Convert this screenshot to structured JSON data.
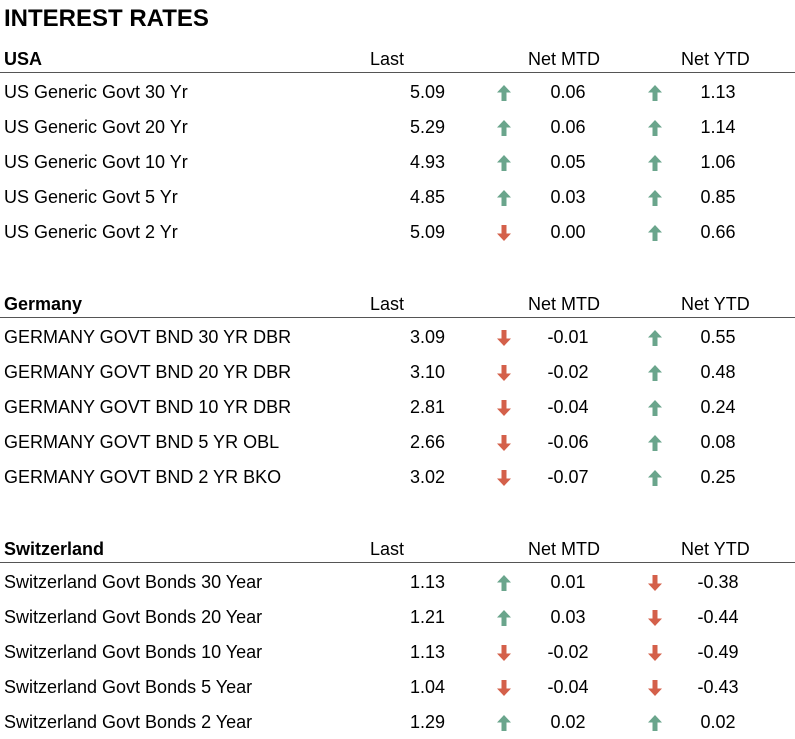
{
  "title": "INTEREST RATES",
  "colors": {
    "up": "#6aa58c",
    "down": "#d4604a"
  },
  "sections": [
    {
      "name": "USA",
      "col_last": "Last",
      "col_mtd": "Net MTD",
      "col_ytd": "Net YTD",
      "rows": [
        {
          "name": "US Generic Govt 30 Yr",
          "last": "5.09",
          "mtd": "0.06",
          "mtd_dir": "up",
          "ytd": "1.13",
          "ytd_dir": "up"
        },
        {
          "name": "US Generic Govt 20 Yr",
          "last": "5.29",
          "mtd": "0.06",
          "mtd_dir": "up",
          "ytd": "1.14",
          "ytd_dir": "up"
        },
        {
          "name": "US Generic Govt 10 Yr",
          "last": "4.93",
          "mtd": "0.05",
          "mtd_dir": "up",
          "ytd": "1.06",
          "ytd_dir": "up"
        },
        {
          "name": "US Generic Govt 5 Yr",
          "last": "4.85",
          "mtd": "0.03",
          "mtd_dir": "up",
          "ytd": "0.85",
          "ytd_dir": "up"
        },
        {
          "name": "US Generic Govt 2 Yr",
          "last": "5.09",
          "mtd": "0.00",
          "mtd_dir": "down",
          "ytd": "0.66",
          "ytd_dir": "up"
        }
      ]
    },
    {
      "name": "Germany",
      "col_last": "Last",
      "col_mtd": "Net MTD",
      "col_ytd": "Net YTD",
      "rows": [
        {
          "name": "GERMANY GOVT BND 30 YR DBR",
          "last": "3.09",
          "mtd": "-0.01",
          "mtd_dir": "down",
          "ytd": "0.55",
          "ytd_dir": "up"
        },
        {
          "name": "GERMANY GOVT BND 20 YR DBR",
          "last": "3.10",
          "mtd": "-0.02",
          "mtd_dir": "down",
          "ytd": "0.48",
          "ytd_dir": "up"
        },
        {
          "name": "GERMANY GOVT BND 10 YR DBR",
          "last": "2.81",
          "mtd": "-0.04",
          "mtd_dir": "down",
          "ytd": "0.24",
          "ytd_dir": "up"
        },
        {
          "name": "GERMANY GOVT BND 5 YR OBL",
          "last": "2.66",
          "mtd": "-0.06",
          "mtd_dir": "down",
          "ytd": "0.08",
          "ytd_dir": "up"
        },
        {
          "name": "GERMANY GOVT BND 2 YR BKO",
          "last": "3.02",
          "mtd": "-0.07",
          "mtd_dir": "down",
          "ytd": "0.25",
          "ytd_dir": "up"
        }
      ]
    },
    {
      "name": "Switzerland",
      "col_last": "Last",
      "col_mtd": "Net MTD",
      "col_ytd": "Net YTD",
      "rows": [
        {
          "name": "Switzerland Govt Bonds 30 Year",
          "last": "1.13",
          "mtd": "0.01",
          "mtd_dir": "up",
          "ytd": "-0.38",
          "ytd_dir": "down"
        },
        {
          "name": "Switzerland Govt Bonds 20 Year",
          "last": "1.21",
          "mtd": "0.03",
          "mtd_dir": "up",
          "ytd": "-0.44",
          "ytd_dir": "down"
        },
        {
          "name": "Switzerland Govt Bonds 10 Year",
          "last": "1.13",
          "mtd": "-0.02",
          "mtd_dir": "down",
          "ytd": "-0.49",
          "ytd_dir": "down"
        },
        {
          "name": "Switzerland Govt Bonds 5 Year",
          "last": "1.04",
          "mtd": "-0.04",
          "mtd_dir": "down",
          "ytd": "-0.43",
          "ytd_dir": "down"
        },
        {
          "name": "Switzerland Govt Bonds 2 Year",
          "last": "1.29",
          "mtd": "0.02",
          "mtd_dir": "up",
          "ytd": "0.02",
          "ytd_dir": "up"
        }
      ]
    }
  ]
}
